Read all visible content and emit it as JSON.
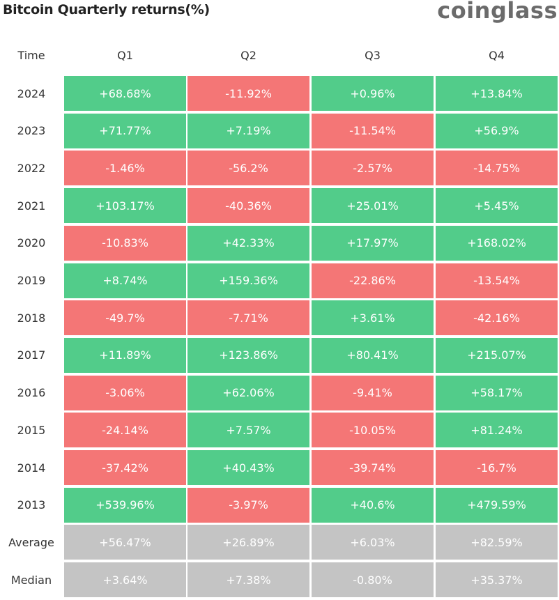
{
  "title": "Bitcoin Quarterly returns(%)",
  "brand": "coinglass",
  "colors": {
    "positive": "#52cc8a",
    "negative": "#f47676",
    "summary": "#c4c4c4"
  },
  "chart_data": {
    "type": "table",
    "title": "Bitcoin Quarterly returns(%)",
    "corner_label": "Time",
    "columns": [
      "Q1",
      "Q2",
      "Q3",
      "Q4"
    ],
    "rows": [
      {
        "label": "2024",
        "values": [
          "+68.68%",
          "-11.92%",
          "+0.96%",
          "+13.84%"
        ]
      },
      {
        "label": "2023",
        "values": [
          "+71.77%",
          "+7.19%",
          "-11.54%",
          "+56.9%"
        ]
      },
      {
        "label": "2022",
        "values": [
          "-1.46%",
          "-56.2%",
          "-2.57%",
          "-14.75%"
        ]
      },
      {
        "label": "2021",
        "values": [
          "+103.17%",
          "-40.36%",
          "+25.01%",
          "+5.45%"
        ]
      },
      {
        "label": "2020",
        "values": [
          "-10.83%",
          "+42.33%",
          "+17.97%",
          "+168.02%"
        ]
      },
      {
        "label": "2019",
        "values": [
          "+8.74%",
          "+159.36%",
          "-22.86%",
          "-13.54%"
        ]
      },
      {
        "label": "2018",
        "values": [
          "-49.7%",
          "-7.71%",
          "+3.61%",
          "-42.16%"
        ]
      },
      {
        "label": "2017",
        "values": [
          "+11.89%",
          "+123.86%",
          "+80.41%",
          "+215.07%"
        ]
      },
      {
        "label": "2016",
        "values": [
          "-3.06%",
          "+62.06%",
          "-9.41%",
          "+58.17%"
        ]
      },
      {
        "label": "2015",
        "values": [
          "-24.14%",
          "+7.57%",
          "-10.05%",
          "+81.24%"
        ]
      },
      {
        "label": "2014",
        "values": [
          "-37.42%",
          "+40.43%",
          "-39.74%",
          "-16.7%"
        ]
      },
      {
        "label": "2013",
        "values": [
          "+539.96%",
          "-3.97%",
          "+40.6%",
          "+479.59%"
        ]
      }
    ],
    "summary": [
      {
        "label": "Average",
        "values": [
          "+56.47%",
          "+26.89%",
          "+6.03%",
          "+82.59%"
        ]
      },
      {
        "label": "Median",
        "values": [
          "+3.64%",
          "+7.38%",
          "-0.80%",
          "+35.37%"
        ]
      }
    ]
  }
}
